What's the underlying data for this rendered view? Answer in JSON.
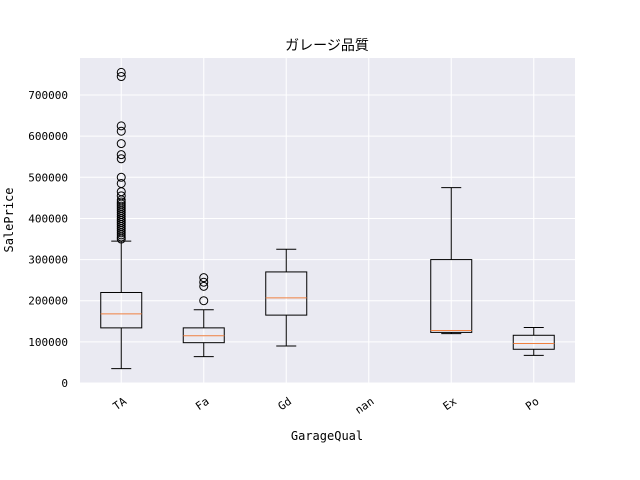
{
  "chart_data": {
    "type": "boxplot",
    "title": "ガレージ品質",
    "xlabel": "GarageQual",
    "ylabel": "SalePrice",
    "ylim": [
      0,
      790000
    ],
    "yticks": [
      0,
      100000,
      200000,
      300000,
      400000,
      500000,
      600000,
      700000
    ],
    "ytick_labels": [
      "0",
      "100000",
      "200000",
      "300000",
      "400000",
      "500000",
      "600000",
      "700000"
    ],
    "grid": true,
    "categories": [
      "TA",
      "Fa",
      "Gd",
      "nan",
      "Ex",
      "Po"
    ],
    "boxes": [
      {
        "category": "TA",
        "whisker_low": 35000,
        "q1": 134000,
        "median": 168000,
        "q3": 220000,
        "whisker_high": 345000,
        "outliers": [
          350000,
          355000,
          360000,
          365000,
          370000,
          375000,
          380000,
          385000,
          390000,
          395000,
          400000,
          405000,
          410000,
          415000,
          420000,
          425000,
          430000,
          435000,
          440000,
          445000,
          455000,
          465000,
          485000,
          500000,
          545000,
          555000,
          582000,
          612000,
          625000,
          745000,
          755000
        ]
      },
      {
        "category": "Fa",
        "whisker_low": 64000,
        "q1": 98000,
        "median": 115000,
        "q3": 134000,
        "whisker_high": 178000,
        "outliers": [
          200000,
          235000,
          245000,
          256000
        ]
      },
      {
        "category": "Gd",
        "whisker_low": 90000,
        "q1": 165000,
        "median": 207000,
        "q3": 270000,
        "whisker_high": 325000,
        "outliers": []
      },
      {
        "category": "nan",
        "empty": true
      },
      {
        "category": "Ex",
        "whisker_low": 120000,
        "q1": 123000,
        "median": 127500,
        "q3": 300000,
        "whisker_high": 475000,
        "outliers": []
      },
      {
        "category": "Po",
        "whisker_low": 67000,
        "q1": 82000,
        "median": 96000,
        "q3": 116000,
        "whisker_high": 135000,
        "outliers": []
      }
    ],
    "colors": {
      "background": "#eaeaf2",
      "grid": "#ffffff",
      "box": "#000000",
      "median": "#f08040"
    }
  }
}
